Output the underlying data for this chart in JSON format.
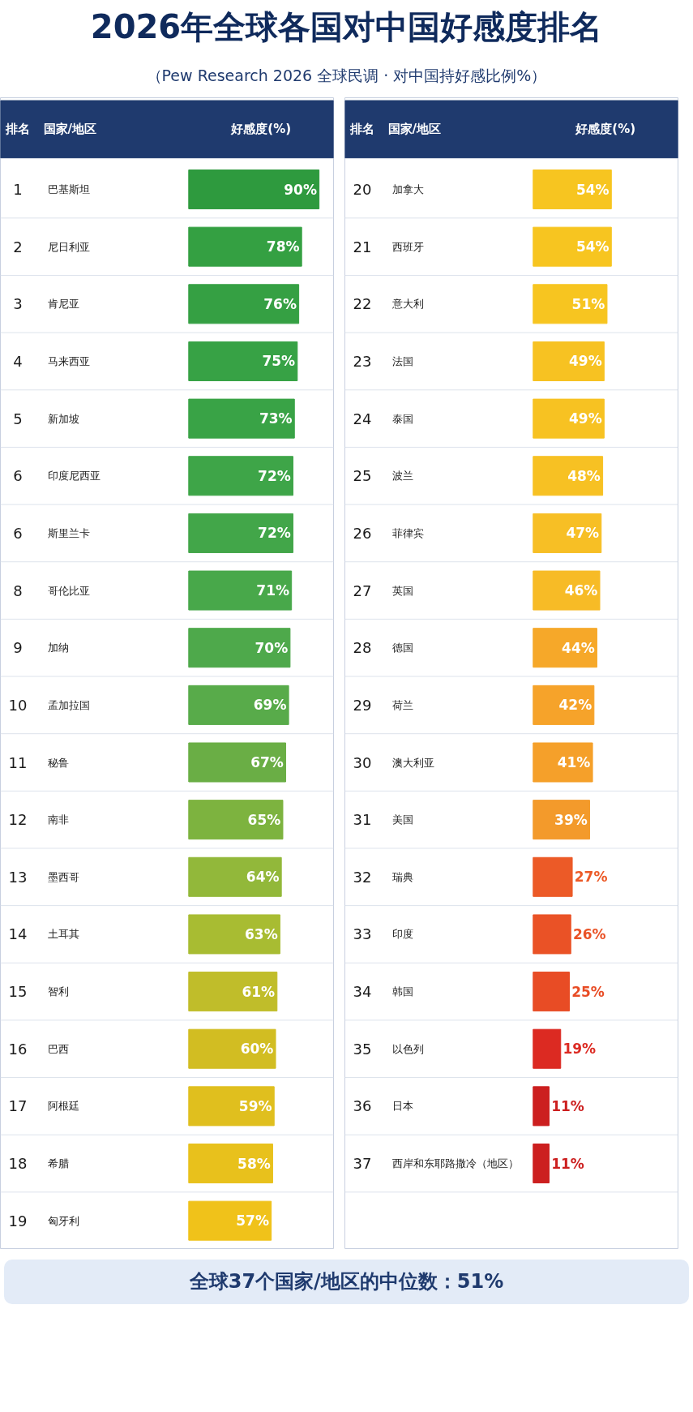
{
  "chart_data": [
    {
      "type": "bar",
      "orientation": "horizontal",
      "title": "2026年全球各国对中国好感度排名",
      "subtitle": "（Pew Research 2026 全球民调 · 对中国持好感比例%）",
      "xlabel": "好感度(%)",
      "ylabel": "国家/地区",
      "tick_labels": false,
      "xlim": [
        0,
        100
      ],
      "categories": [
        "巴基斯坦",
        "尼日利亚",
        "肯尼亚",
        "马来西亚",
        "新加坡",
        "印度尼西亚",
        "斯里兰卡",
        "哥伦比亚",
        "加纳",
        "孟加拉国",
        "秘鲁",
        "南非",
        "墨西哥",
        "土耳其",
        "智利",
        "巴西",
        "阿根廷",
        "希腊",
        "匈牙利"
      ],
      "values": [
        90,
        78,
        76,
        75,
        73,
        72,
        72,
        71,
        70,
        69,
        67,
        65,
        64,
        63,
        61,
        60,
        59,
        58,
        57
      ],
      "value_labels": [
        "90%",
        "78%",
        "76%",
        "75%",
        "73%",
        "72%",
        "72%",
        "71%",
        "70%",
        "69%",
        "67%",
        "65%",
        "64%",
        "63%",
        "61%",
        "60%",
        "59%",
        "58%",
        "57%"
      ],
      "colors": [
        "#2e9a3e",
        "#34a042",
        "#35a043",
        "#37a245",
        "#39a346",
        "#3ea548",
        "#42a649",
        "#48a84a",
        "#4ea94b",
        "#58ab4a",
        "#6aae45",
        "#7db33f",
        "#92b83a",
        "#a8bc32",
        "#c0bd2a",
        "#d2bd22",
        "#e0bf1e",
        "#e8c11c",
        "#f0c21a"
      ],
      "annotations": [
        "排名",
        "1",
        "2",
        "3",
        "4",
        "5",
        "6",
        "6",
        "8",
        "9",
        "10",
        "11",
        "12",
        "13",
        "14",
        "15",
        "16",
        "17",
        "18",
        "19"
      ]
    },
    {
      "type": "bar",
      "orientation": "horizontal",
      "xlabel": "好感度(%)",
      "ylabel": "国家/地区",
      "tick_labels": false,
      "xlim": [
        0,
        100
      ],
      "categories": [
        "加拿大",
        "西班牙",
        "意大利",
        "法国",
        "泰国",
        "波兰",
        "菲律宾",
        "英国",
        "德国",
        "荷兰",
        "澳大利亚",
        "美国",
        "瑞典",
        "印度",
        "韩国",
        "以色列",
        "日本",
        "西岸和东耶路撒冷（地区）"
      ],
      "values": [
        54,
        54,
        51,
        49,
        49,
        48,
        47,
        46,
        44,
        42,
        41,
        39,
        27,
        26,
        25,
        19,
        11,
        11
      ],
      "value_labels": [
        "54%",
        "54%",
        "51%",
        "49%",
        "49%",
        "48%",
        "47%",
        "46%",
        "44%",
        "42%",
        "41%",
        "39%",
        "27%",
        "26%",
        "25%",
        "19%",
        "11%",
        "11%"
      ],
      "colors": [
        "#f7c520",
        "#f7c520",
        "#f7c520",
        "#f7c222",
        "#f7c222",
        "#f7c123",
        "#f7bf25",
        "#f7bb26",
        "#f6a829",
        "#f6a32a",
        "#f5a02a",
        "#f39a2b",
        "#ec5a27",
        "#ea5226",
        "#e84c25",
        "#dc2a22",
        "#cc1f1f",
        "#cc1f1f"
      ],
      "annotations": [
        "排名",
        "全球37个国家/地区的中位数：51%",
        "20",
        "21",
        "22",
        "23",
        "24",
        "25",
        "26",
        "27",
        "28",
        "29",
        "30",
        "31",
        "32",
        "33",
        "34",
        "35",
        "36",
        "37"
      ]
    }
  ]
}
